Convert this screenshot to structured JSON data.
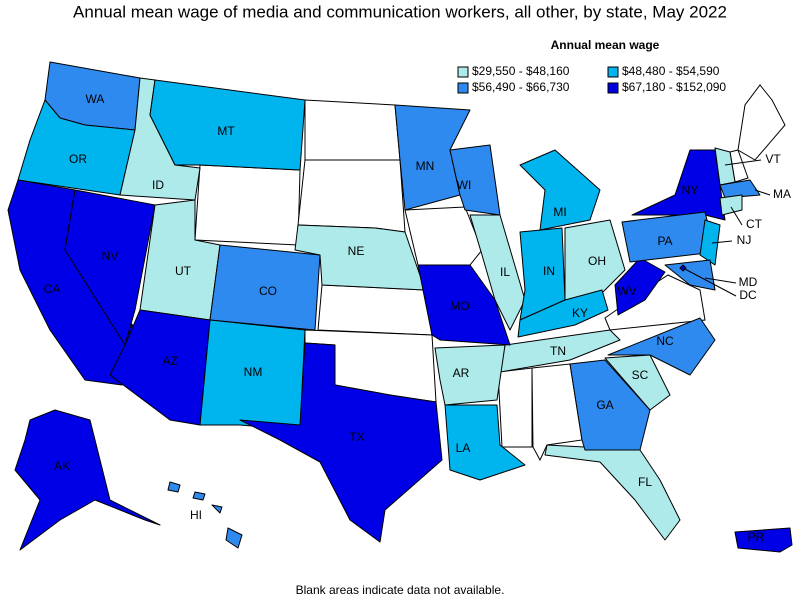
{
  "title": "Annual mean wage of media and communication workers, all other, by state, May 2022",
  "legend": {
    "title": "Annual mean wage",
    "items": [
      {
        "label": "$29,550 - $48,160",
        "color": "#aeeaea"
      },
      {
        "label": "$48,480 - $54,590",
        "color": "#00b4ee"
      },
      {
        "label": "$56,490 - $66,730",
        "color": "#2f8af0"
      },
      {
        "label": "$67,180 - $152,090",
        "color": "#0000e6"
      }
    ]
  },
  "states": [
    {
      "label": "WA",
      "color": "#2f8af0"
    },
    {
      "label": "OR",
      "color": "#00b4ee"
    },
    {
      "label": "CA",
      "color": "#0000e6"
    },
    {
      "label": "NV",
      "color": "#0000e6"
    },
    {
      "label": "ID",
      "color": "#aeeaea"
    },
    {
      "label": "MT",
      "color": "#00b4ee"
    },
    {
      "label": "UT",
      "color": "#aeeaea"
    },
    {
      "label": "AZ",
      "color": "#0000e6"
    },
    {
      "label": "CO",
      "color": "#2f8af0"
    },
    {
      "label": "NM",
      "color": "#00b4ee"
    },
    {
      "label": "TX",
      "color": "#0000e6"
    },
    {
      "label": "NE",
      "color": "#aeeaea"
    },
    {
      "label": "MN",
      "color": "#2f8af0"
    },
    {
      "label": "WI",
      "color": "#2f8af0"
    },
    {
      "label": "IL",
      "color": "#aeeaea"
    },
    {
      "label": "MI",
      "color": "#00b4ee"
    },
    {
      "label": "IN",
      "color": "#00b4ee"
    },
    {
      "label": "OH",
      "color": "#aeeaea"
    },
    {
      "label": "KY",
      "color": "#00b4ee"
    },
    {
      "label": "TN",
      "color": "#aeeaea"
    },
    {
      "label": "MO",
      "color": "#0000e6"
    },
    {
      "label": "AR",
      "color": "#aeeaea"
    },
    {
      "label": "LA",
      "color": "#00b4ee"
    },
    {
      "label": "FL",
      "color": "#aeeaea"
    },
    {
      "label": "GA",
      "color": "#2f8af0"
    },
    {
      "label": "SC",
      "color": "#aeeaea"
    },
    {
      "label": "NC",
      "color": "#2f8af0"
    },
    {
      "label": "WV",
      "color": "#0000e6"
    },
    {
      "label": "NY",
      "color": "#0000e6"
    },
    {
      "label": "PA",
      "color": "#2f8af0"
    },
    {
      "label": "VT",
      "color": "#aeeaea"
    },
    {
      "label": "MA",
      "color": "#2f8af0"
    },
    {
      "label": "CT",
      "color": "#aeeaea"
    },
    {
      "label": "NJ",
      "color": "#00b4ee"
    },
    {
      "label": "MD",
      "color": "#2f8af0"
    },
    {
      "label": "DC",
      "color": "#0000e6"
    },
    {
      "label": "AK",
      "color": "#0000e6"
    },
    {
      "label": "HI",
      "color": "#2f8af0"
    },
    {
      "label": "PR",
      "color": "#0000e6"
    }
  ],
  "note": "Blank areas indicate data not available."
}
